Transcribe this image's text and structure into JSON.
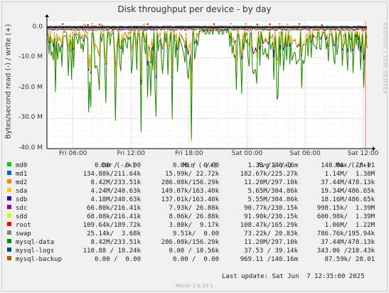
{
  "chart_data": {
    "type": "line",
    "title": "Disk throughput per device - by day",
    "ylabel": "Bytes/second read (-) / write (+)",
    "ylim": [
      -40000000,
      2000000
    ],
    "y_ticks": [
      {
        "value": 0,
        "label": "0.0"
      },
      {
        "value": -10000000,
        "label": "-10.0 M"
      },
      {
        "value": -20000000,
        "label": "-20.0 M"
      },
      {
        "value": -30000000,
        "label": "-30.0 M"
      },
      {
        "value": -40000000,
        "label": "-40.0 M"
      }
    ],
    "x_range_hours": [
      3.3,
      36.4
    ],
    "x_ticks": [
      {
        "value": 6,
        "label": "Fri 06:00"
      },
      {
        "value": 12,
        "label": "Fri 12:00"
      },
      {
        "value": 18,
        "label": "Fri 18:00"
      },
      {
        "value": 24,
        "label": "Sat 00:00"
      },
      {
        "value": 30,
        "label": "Sat 06:00"
      },
      {
        "value": 36,
        "label": "Sat 12:00"
      }
    ],
    "grid": true,
    "headers": {
      "cur": "Cur (-/+)",
      "min": "Min (-/+)",
      "avg": "Avg (-/+)",
      "max": "Max (-/+)"
    },
    "series": [
      {
        "name": "md0",
        "color": "#00cc00",
        "cur": "0.00 /  0.00",
        "min": "0.00 /  0.00",
        "avg": "1.33 /140.16m",
        "max": "140.06 / 28.01"
      },
      {
        "name": "md1",
        "color": "#0066b3",
        "cur": "134.88k/211.64k",
        "min": "15.99k/ 22.72k",
        "avg": "182.67k/225.27k",
        "max": "1.14M/  1.38M"
      },
      {
        "name": "md2",
        "color": "#ff8000",
        "cur": "8.42M/233.51k",
        "min": "286.08k/156.29k",
        "avg": "11.20M/297.10k",
        "max": "37.44M/478.13k"
      },
      {
        "name": "sda",
        "color": "#ffcc00",
        "cur": "4.24M/240.63k",
        "min": "149.07k/163.40k",
        "avg": "5.65M/304.86k",
        "max": "19.34M/486.65k"
      },
      {
        "name": "sdb",
        "color": "#330099",
        "cur": "4.18M/240.63k",
        "min": "137.01k/163.40k",
        "avg": "5.55M/304.86k",
        "max": "18.16M/486.65k"
      },
      {
        "name": "sdc",
        "color": "#990099",
        "cur": "66.80k/216.41k",
        "min": "7.93k/ 26.88k",
        "avg": "90.77k/230.15k",
        "max": "998.15k/  1.39M"
      },
      {
        "name": "sdd",
        "color": "#ccff00",
        "cur": "68.08k/216.41k",
        "min": "8.06k/ 26.88k",
        "avg": "91.90k/230.15k",
        "max": "600.98k/  1.39M"
      },
      {
        "name": "root",
        "color": "#ff0000",
        "cur": "109.64k/189.72k",
        "min": "3.80k/  9.17k",
        "avg": "108.47k/165.29k",
        "max": "1.06M/  1.22M"
      },
      {
        "name": "swap",
        "color": "#808080",
        "cur": "25.14k/  3.68k",
        "min": "9.51k/  0.00",
        "avg": "73.22k/ 20.83k",
        "max": "786.76k/195.94k"
      },
      {
        "name": "mysql-data",
        "color": "#008f00",
        "cur": "8.42M/233.51k",
        "min": "286.08k/156.29k",
        "avg": "11.20M/297.10k",
        "max": "37.44M/478.13k"
      },
      {
        "name": "mysql-logs",
        "color": "#00487d",
        "cur": "110.88 / 18.24k",
        "min": "0.00 / 10.56k",
        "avg": "37.53 / 39.14k",
        "max": "343.06 /218.43k"
      },
      {
        "name": "mysql-backup",
        "color": "#b35a00",
        "cur": "0.00 /  0.00",
        "min": "0.00 /  0.00",
        "avg": "969.11 /140.16m",
        "max": "87.59k/ 28.01"
      }
    ]
  },
  "watermark": "RRDTOOL / TOBI OETIKER",
  "last_update": "Last update: Sat Jun  7 12:35:00 2025",
  "footer": "Munin 2.0.33-1"
}
